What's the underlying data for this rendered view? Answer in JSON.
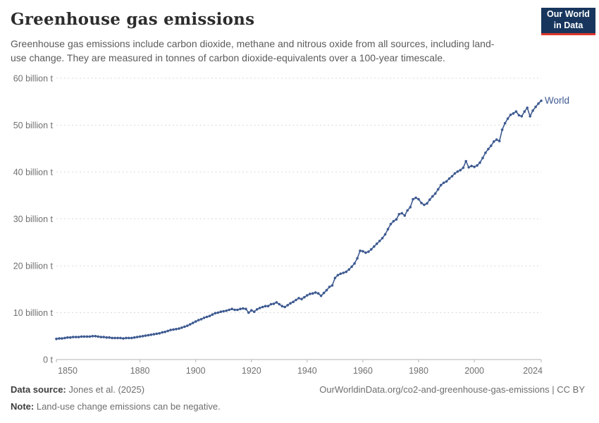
{
  "header": {
    "title": "Greenhouse gas emissions",
    "subtitle": "Greenhouse gas emissions include carbon dioxide, methane and nitrous oxide from all sources, including land-use change. They are measured in tonnes of carbon dioxide-equivalents over a 100-year timescale.",
    "logo": {
      "line1": "Our World",
      "line2": "in Data",
      "bg_color": "#18365d",
      "accent_color": "#dc352c"
    }
  },
  "footer": {
    "data_source_label": "Data source:",
    "data_source_value": "Jones et al. (2025)",
    "note_label": "Note:",
    "note_value": "Land-use change emissions can be negative.",
    "url_text": "OurWorldinData.org/co2-and-greenhouse-gas-emissions",
    "license_text": " | CC BY"
  },
  "chart_data": {
    "type": "line",
    "title": "Greenhouse gas emissions",
    "xlabel": "",
    "ylabel": "",
    "unit": "billion tonnes of CO2-equivalents",
    "ylim": [
      0,
      60
    ],
    "grid": "horizontal-dashed",
    "legend_position": "end-of-line-label",
    "y_ticks": [
      {
        "value": 0,
        "label": "0 t"
      },
      {
        "value": 10,
        "label": "10 billion t"
      },
      {
        "value": 20,
        "label": "20 billion t"
      },
      {
        "value": 30,
        "label": "30 billion t"
      },
      {
        "value": 40,
        "label": "40 billion t"
      },
      {
        "value": 50,
        "label": "50 billion t"
      },
      {
        "value": 60,
        "label": "60 billion t"
      }
    ],
    "x_ticks": [
      1850,
      1880,
      1900,
      1920,
      1940,
      1960,
      1980,
      2000,
      2024
    ],
    "start_year": 1850,
    "end_year": 2024,
    "series": [
      {
        "name": "World",
        "color": "#3e5a91",
        "values": [
          4.4,
          4.5,
          4.5,
          4.6,
          4.7,
          4.7,
          4.8,
          4.8,
          4.8,
          4.9,
          4.9,
          4.9,
          4.9,
          5.0,
          5.0,
          4.9,
          4.8,
          4.8,
          4.7,
          4.7,
          4.6,
          4.6,
          4.6,
          4.6,
          4.5,
          4.6,
          4.6,
          4.6,
          4.7,
          4.8,
          4.9,
          5.0,
          5.1,
          5.2,
          5.3,
          5.4,
          5.5,
          5.6,
          5.8,
          5.9,
          6.1,
          6.3,
          6.4,
          6.5,
          6.6,
          6.8,
          7.0,
          7.2,
          7.5,
          7.8,
          8.1,
          8.4,
          8.6,
          8.9,
          9.1,
          9.3,
          9.6,
          9.9,
          10.0,
          10.2,
          10.3,
          10.4,
          10.6,
          10.8,
          10.6,
          10.6,
          10.8,
          10.9,
          10.8,
          10.0,
          10.5,
          10.2,
          10.7,
          11.0,
          11.2,
          11.4,
          11.4,
          11.8,
          11.9,
          12.2,
          11.8,
          11.4,
          11.2,
          11.6,
          12.0,
          12.3,
          12.7,
          13.1,
          12.9,
          13.3,
          13.7,
          14.0,
          14.1,
          14.3,
          14.1,
          13.6,
          14.2,
          14.8,
          15.5,
          15.8,
          17.4,
          18.0,
          18.3,
          18.5,
          18.7,
          19.2,
          19.8,
          20.5,
          21.6,
          23.2,
          23.1,
          22.8,
          23.0,
          23.5,
          24.1,
          24.7,
          25.3,
          25.9,
          26.7,
          27.8,
          28.9,
          29.5,
          29.9,
          31.0,
          31.2,
          30.7,
          31.8,
          32.5,
          34.2,
          34.5,
          34.2,
          33.4,
          33.0,
          33.3,
          34.1,
          34.8,
          35.4,
          36.3,
          37.2,
          37.7,
          38.0,
          38.6,
          39.1,
          39.7,
          40.1,
          40.4,
          40.9,
          42.3,
          41.0,
          41.3,
          41.1,
          41.4,
          42.0,
          43.0,
          44.1,
          44.9,
          45.6,
          46.5,
          46.9,
          46.6,
          49.0,
          50.4,
          51.4,
          52.2,
          52.5,
          52.9,
          52.1,
          51.9,
          52.9,
          53.7,
          51.9,
          53.1,
          53.9,
          54.6,
          55.2
        ]
      }
    ],
    "style": {
      "gridline_color": "#d9d9d9",
      "axis_color": "#b3b3b3",
      "tick_label_color": "#707070"
    }
  }
}
